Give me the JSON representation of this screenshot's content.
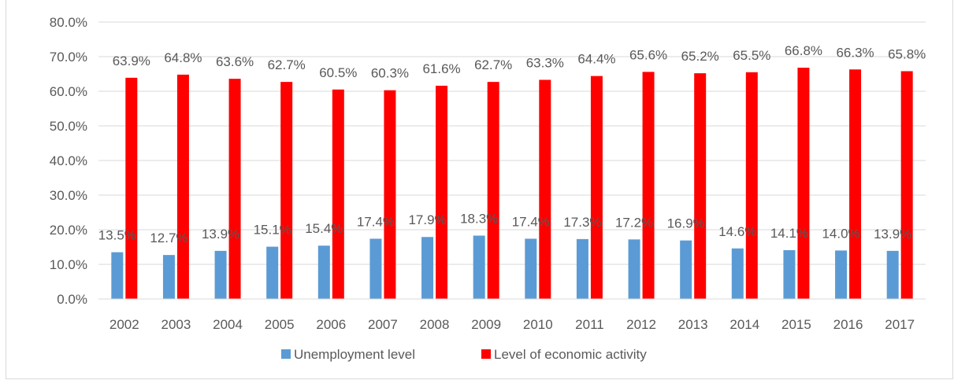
{
  "chart_data": {
    "type": "bar",
    "categories": [
      "2002",
      "2003",
      "2004",
      "2005",
      "2006",
      "2007",
      "2008",
      "2009",
      "2010",
      "2011",
      "2012",
      "2013",
      "2014",
      "2015",
      "2016",
      "2017"
    ],
    "series": [
      {
        "name": "Unemployment level",
        "color": "#5b9bd5",
        "values": [
          13.5,
          12.7,
          13.9,
          15.1,
          15.4,
          17.4,
          17.9,
          18.3,
          17.4,
          17.3,
          17.2,
          16.9,
          14.6,
          14.1,
          14.0,
          13.9
        ],
        "labels": [
          "13.5%",
          "12.7%",
          "13.9%",
          "15.1%",
          "15.4%",
          "17.4%",
          "17.9%",
          "18.3%",
          "17.4%",
          "17.3%",
          "17.2%",
          "16.9%",
          "14.6%",
          "14.1%",
          "14.0%",
          "13.9%"
        ]
      },
      {
        "name": "Level of economic activity",
        "color": "#ff0000",
        "values": [
          63.9,
          64.8,
          63.6,
          62.7,
          60.5,
          60.3,
          61.6,
          62.7,
          63.3,
          64.4,
          65.6,
          65.2,
          65.5,
          66.8,
          66.3,
          65.8
        ],
        "labels": [
          "63.9%",
          "64.8%",
          "63.6%",
          "62.7%",
          "60.5%",
          "60.3%",
          "61.6%",
          "62.7%",
          "63.3%",
          "64.4%",
          "65.6%",
          "65.2%",
          "65.5%",
          "66.8%",
          "66.3%",
          "65.8%"
        ]
      }
    ],
    "ylim": [
      0,
      80
    ],
    "yticks": [
      0,
      10,
      20,
      30,
      40,
      50,
      60,
      70,
      80
    ],
    "ytick_labels": [
      "0.0%",
      "10.0%",
      "20.0%",
      "30.0%",
      "40.0%",
      "50.0%",
      "60.0%",
      "70.0%",
      "80.0%"
    ],
    "grid": true,
    "legend": "bottom",
    "title": "",
    "xlabel": "",
    "ylabel": ""
  }
}
